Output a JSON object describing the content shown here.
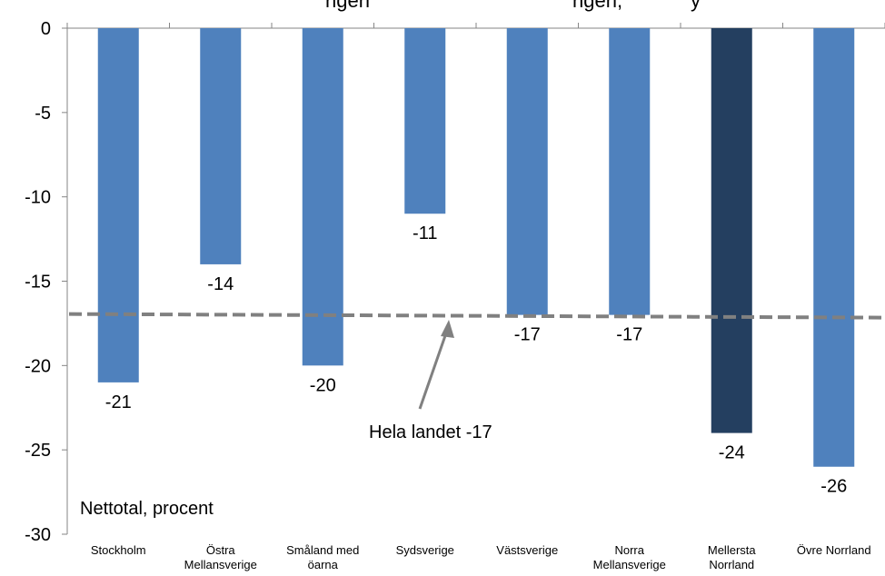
{
  "chart_data": {
    "type": "bar",
    "title": "…ngen … …ngen, … ",
    "title_visible_fragments": [
      "ngen",
      "ngen, ",
      "y"
    ],
    "categories": [
      [
        "Stockholm"
      ],
      [
        "Östra",
        "Mellansverige"
      ],
      [
        "Småland med",
        "öarna"
      ],
      [
        "Sydsverige"
      ],
      [
        "Västsverige"
      ],
      [
        "Norra",
        "Mellansverige"
      ],
      [
        "Mellersta",
        "Norrland"
      ],
      [
        "Övre Norrland"
      ]
    ],
    "values": [
      -21,
      -14,
      -20,
      -11,
      -17,
      -17,
      -24,
      -26
    ],
    "data_labels": [
      "-21",
      "-14",
      "-20",
      "-11",
      "-17",
      "-17",
      "-24",
      "-26"
    ],
    "highlight_index": 6,
    "colors": {
      "bar": "#4f81bd",
      "highlight": "#243f60",
      "reference_line": "#808080",
      "arrow": "#808080"
    },
    "ylim": [
      -30,
      0
    ],
    "yticks": [
      0,
      -5,
      -10,
      -15,
      -20,
      -25,
      -30
    ],
    "ytick_labels": [
      "0",
      "-5",
      "-10",
      "-15",
      "-20",
      "-25",
      "-30"
    ],
    "ylabel": "Nettotal, procent",
    "reference_line": {
      "value": -17,
      "label": "Hela landet -17",
      "style": "dashed"
    },
    "grid": false,
    "legend": "none"
  }
}
